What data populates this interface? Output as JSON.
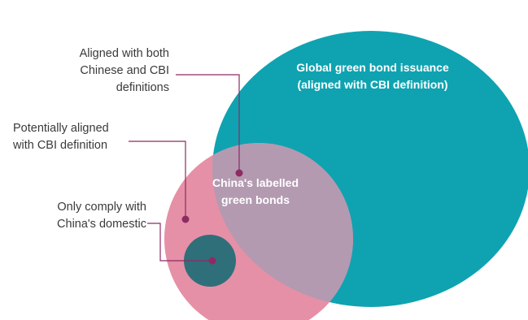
{
  "diagram": {
    "global_circle_label": [
      "Global green bond issuance",
      "(aligned with CBI definition)"
    ],
    "china_circle_label": [
      "China's labelled",
      "green bonds"
    ],
    "callouts": {
      "both": [
        "Aligned with both",
        "Chinese and CBI",
        "definitions"
      ],
      "potential": [
        "Potentially aligned",
        "with CBI definition"
      ],
      "domestic": [
        "Only comply with",
        "China's domestic"
      ]
    },
    "colors": {
      "global_circle": "#0fa3b1",
      "china_circle": "#e48aa1",
      "overlap": "#b39ab1",
      "domestic_circle": "#2f6f7a",
      "callout_line": "#8e2b63",
      "callout_dot": "#8e2b63",
      "label_text": "#3a3a3a"
    }
  }
}
